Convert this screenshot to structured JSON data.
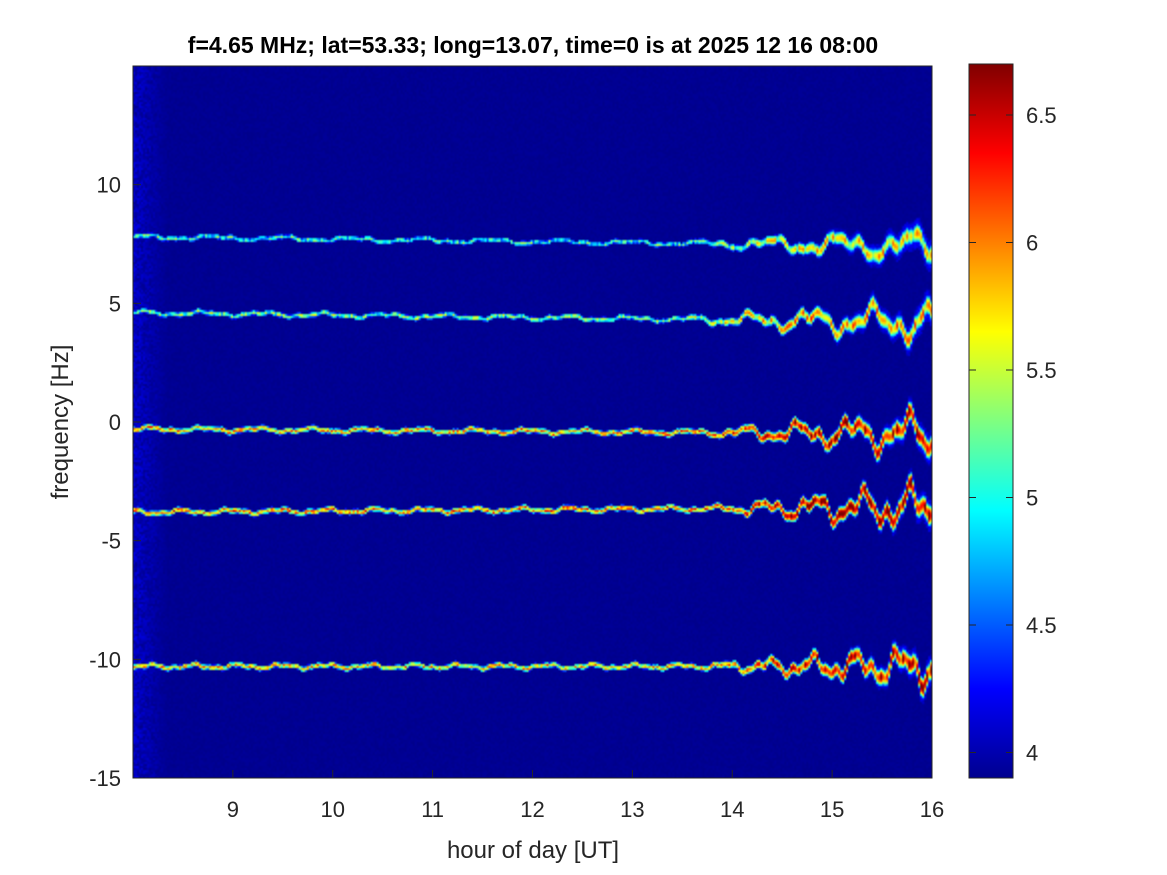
{
  "chart_data": {
    "type": "heatmap",
    "title": "f=4.65 MHz;  lat=53.33; long=13.07, time=0 is at 2025 12 16 08:00",
    "xlabel": "hour of day [UT]",
    "ylabel": "frequency [Hz]",
    "xlim": [
      8.0,
      16.0
    ],
    "ylim": [
      -15,
      15
    ],
    "xticks": [
      9,
      10,
      11,
      12,
      13,
      14,
      15,
      16
    ],
    "yticks": [
      -15,
      -10,
      -5,
      0,
      5,
      10
    ],
    "colormap": "jet",
    "clim": [
      3.9,
      6.7
    ],
    "colorbar_ticks": [
      4,
      4.5,
      5,
      5.5,
      6,
      6.5
    ],
    "background_value": 3.95,
    "grid": false,
    "traces": [
      {
        "center_frequency": 7.7,
        "start_frequency": 7.8,
        "end_frequency": 7.4,
        "peak_level": 5.7,
        "disturbed_from_hour": 13.6,
        "max_excursion": 0.6
      },
      {
        "center_frequency": 4.4,
        "start_frequency": 4.6,
        "end_frequency": 4.2,
        "peak_level": 5.9,
        "disturbed_from_hour": 13.5,
        "max_excursion": 0.8
      },
      {
        "center_frequency": -0.5,
        "start_frequency": -0.3,
        "end_frequency": -0.5,
        "peak_level": 6.5,
        "disturbed_from_hour": 13.7,
        "max_excursion": 0.9
      },
      {
        "center_frequency": -4.0,
        "start_frequency": -3.8,
        "end_frequency": -3.6,
        "peak_level": 6.6,
        "disturbed_from_hour": 13.8,
        "max_excursion": 1.0
      },
      {
        "center_frequency": -10.4,
        "start_frequency": -10.3,
        "end_frequency": -10.3,
        "peak_level": 6.4,
        "disturbed_from_hour": 13.7,
        "max_excursion": 0.8
      }
    ],
    "colors": {
      "axis": "#262626",
      "background": "#00008f"
    }
  }
}
